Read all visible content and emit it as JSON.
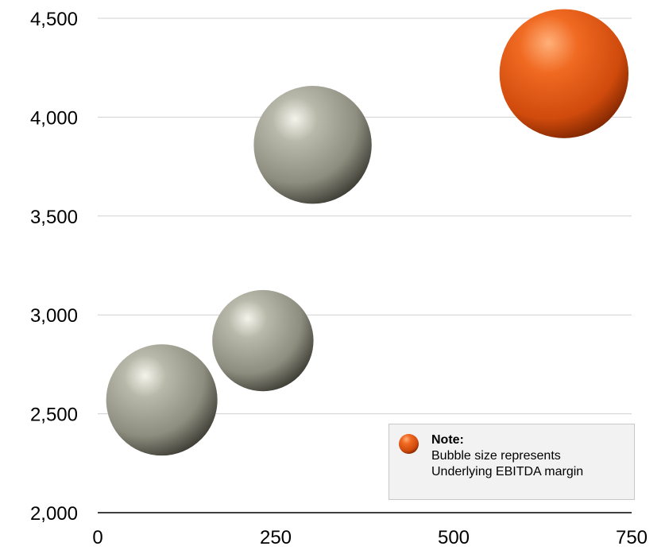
{
  "chart_data": {
    "type": "scatter",
    "subtype": "bubble",
    "title": "",
    "xlabel": "",
    "ylabel": "",
    "xlim": [
      0,
      750
    ],
    "ylim": [
      2000,
      4500
    ],
    "x_ticks": [
      0,
      250,
      500,
      750
    ],
    "x_tick_labels": [
      "0",
      "250",
      "500",
      "750"
    ],
    "y_ticks": [
      2000,
      2500,
      3000,
      3500,
      4000,
      4500
    ],
    "y_tick_labels": [
      "2,000",
      "2,500",
      "3,000",
      "3,500",
      "4,000",
      "4,500"
    ],
    "grid": "horizontal",
    "legend": "none",
    "points": [
      {
        "x": 90,
        "y": 2570,
        "size": 1.0,
        "color": "#9c9c8c"
      },
      {
        "x": 232,
        "y": 2870,
        "size": 0.91,
        "color": "#9c9c8c"
      },
      {
        "x": 302,
        "y": 3860,
        "size": 1.06,
        "color": "#9c9c8c"
      },
      {
        "x": 655,
        "y": 4220,
        "size": 1.16,
        "color": "#e8541a"
      }
    ],
    "note": {
      "title": "Note:",
      "lines": [
        "Bubble size represents",
        "Underlying EBITDA margin"
      ],
      "position": "bottom-right",
      "swatch_color": "#e8541a"
    }
  }
}
